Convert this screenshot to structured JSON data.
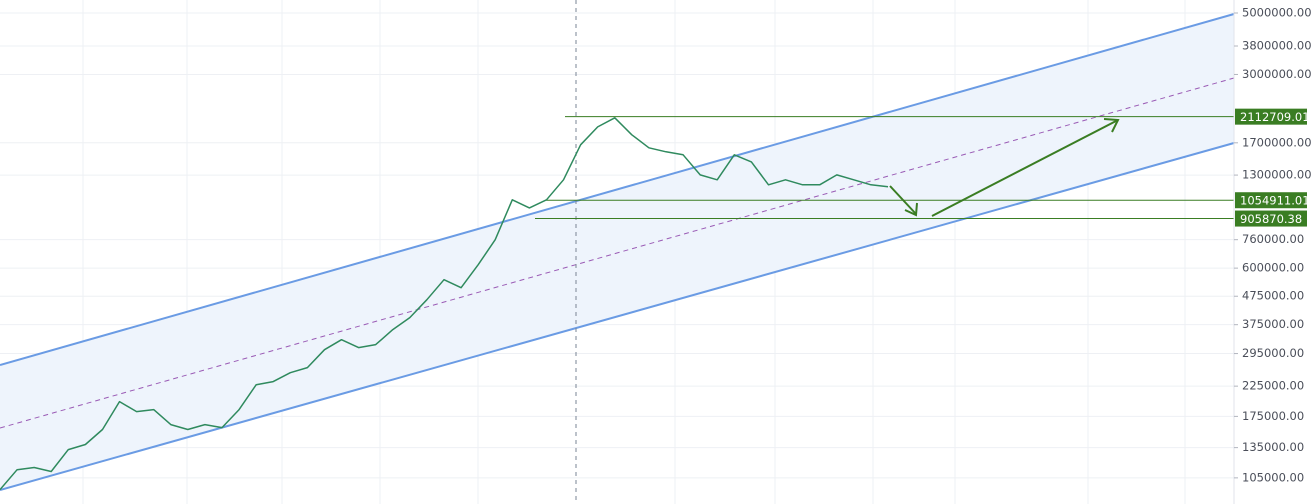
{
  "chart_data": {
    "type": "line",
    "log_scale": true,
    "grid": true,
    "color": "#2f8a5e",
    "categories": [
      null,
      null,
      null,
      null,
      null,
      null,
      null,
      null,
      null,
      null,
      null,
      null,
      null,
      null,
      null,
      null,
      null,
      null,
      null,
      null,
      null,
      null,
      null,
      null,
      null,
      null,
      null,
      null,
      null,
      null,
      null,
      null,
      null,
      null,
      null,
      null,
      null,
      null,
      null,
      null,
      null,
      null,
      null,
      null,
      null,
      null,
      null,
      null,
      null,
      null,
      null,
      null,
      null
    ],
    "values": [
      95200,
      112400,
      114400,
      110700,
      132800,
      138500,
      156900,
      197900,
      182100,
      185200,
      163500,
      156900,
      163500,
      159400,
      185200,
      227800,
      233600,
      251700,
      262500,
      304700,
      331000,
      310000,
      317900,
      359900,
      397700,
      461500,
      544800,
      510100,
      617300,
      760000,
      1059000,
      990000,
      1059000,
      1250000,
      1672000,
      1941000,
      2092000,
      1817000,
      1631000,
      1578000,
      1539000,
      1302000,
      1250000,
      1539000,
      1450000,
      1199000,
      1250000,
      1199000,
      1199000,
      1302000,
      1250000,
      1199000,
      1180000
    ],
    "ylim": [
      84500,
      5570000
    ],
    "yticks": [
      {
        "value": 5000000,
        "label": "5000000.00"
      },
      {
        "value": 3800000,
        "label": "3800000.00"
      },
      {
        "value": 3000000,
        "label": "3000000.00"
      },
      {
        "value": 1700000,
        "label": "1700000.00"
      },
      {
        "value": 1300000,
        "label": "1300000.00"
      },
      {
        "value": 760000,
        "label": "760000.00"
      },
      {
        "value": 600000,
        "label": "600000.00"
      },
      {
        "value": 475000,
        "label": "475000.00"
      },
      {
        "value": 375000,
        "label": "375000.00"
      },
      {
        "value": 295000,
        "label": "295000.00"
      },
      {
        "value": 225000,
        "label": "225000.00"
      },
      {
        "value": 175000,
        "label": "175000.00"
      },
      {
        "value": 135000,
        "label": "135000.00"
      },
      {
        "value": 105000,
        "label": "105000.00"
      }
    ],
    "levels": [
      2112709.01,
      1054911.01,
      905870.38
    ]
  }
}
